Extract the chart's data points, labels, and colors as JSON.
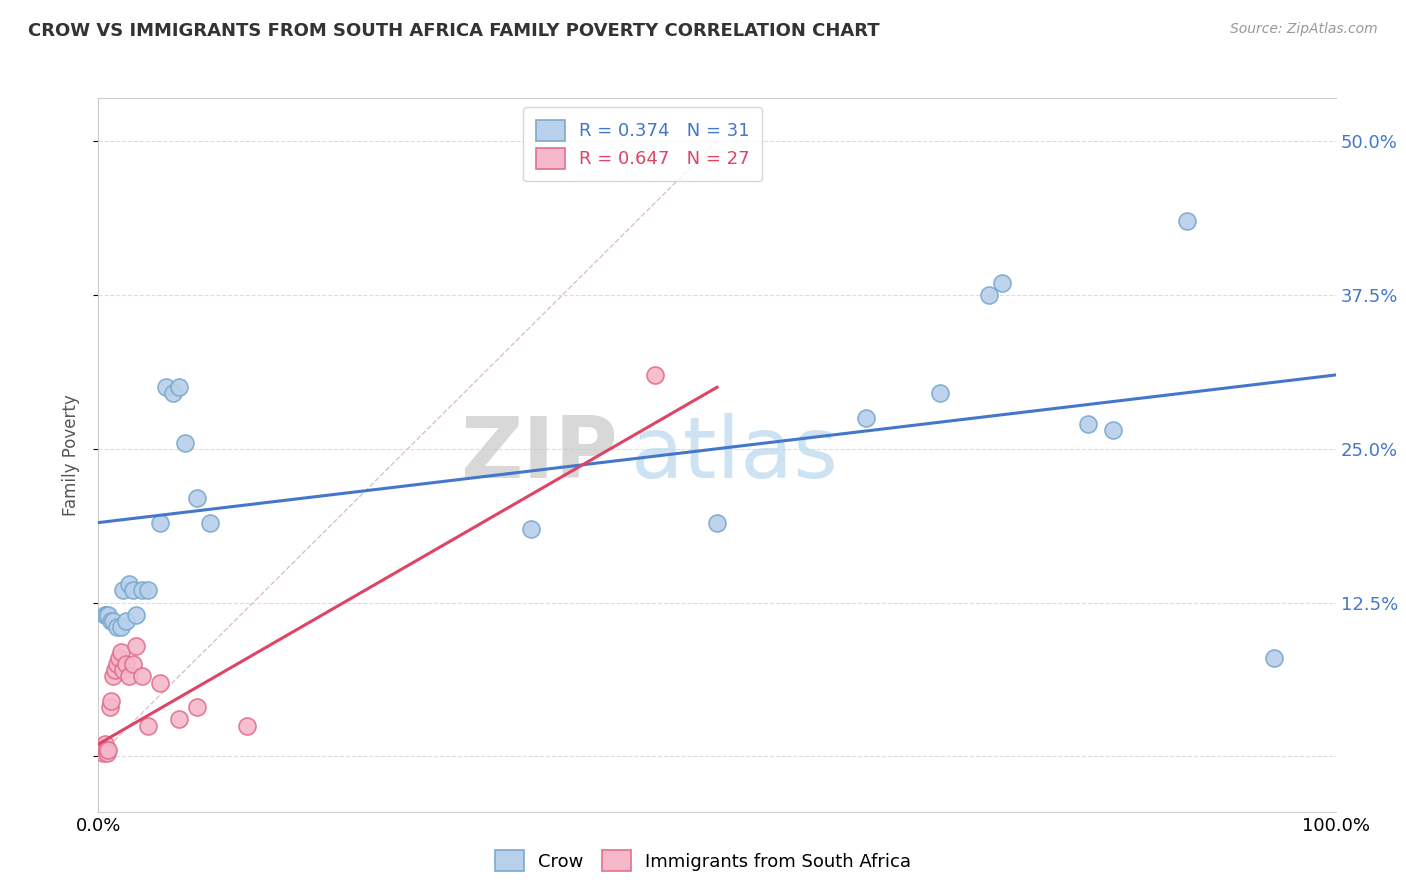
{
  "title": "CROW VS IMMIGRANTS FROM SOUTH AFRICA FAMILY POVERTY CORRELATION CHART",
  "source": "Source: ZipAtlas.com",
  "ylabel": "Family Poverty",
  "legend_r1": "R = 0.374   N = 31",
  "legend_r2": "R = 0.647   N = 27",
  "crow_color": "#b8d0ea",
  "crow_edge": "#7aaad0",
  "imm_color": "#f5b8c8",
  "imm_edge": "#e07090",
  "blue_line_color": "#4477cc",
  "pink_line_color": "#dd4466",
  "diag_line_color": "#e0c0c8",
  "watermark_zip": "ZIP",
  "watermark_atlas": "atlas",
  "background_color": "#ffffff",
  "grid_color": "#dddddd",
  "xlim": [
    0.0,
    1.0
  ],
  "ylim": [
    -0.045,
    0.535
  ],
  "ytick_values": [
    0.0,
    0.125,
    0.25,
    0.375,
    0.5
  ],
  "ytick_labels": [
    "",
    "12.5%",
    "25.0%",
    "37.5%",
    "50.0%"
  ],
  "crow_scatter_x": [
    0.005,
    0.006,
    0.008,
    0.01,
    0.012,
    0.015,
    0.018,
    0.02,
    0.022,
    0.025,
    0.028,
    0.03,
    0.035,
    0.04,
    0.05,
    0.055,
    0.06,
    0.065,
    0.07,
    0.08,
    0.09,
    0.35,
    0.5,
    0.62,
    0.68,
    0.72,
    0.73,
    0.8,
    0.82,
    0.88,
    0.95
  ],
  "crow_scatter_y": [
    0.115,
    0.115,
    0.115,
    0.11,
    0.11,
    0.105,
    0.105,
    0.135,
    0.11,
    0.14,
    0.135,
    0.115,
    0.135,
    0.135,
    0.19,
    0.3,
    0.295,
    0.3,
    0.255,
    0.21,
    0.19,
    0.185,
    0.19,
    0.275,
    0.295,
    0.375,
    0.385,
    0.27,
    0.265,
    0.435,
    0.08
  ],
  "imm_scatter_x": [
    0.002,
    0.003,
    0.004,
    0.005,
    0.005,
    0.006,
    0.007,
    0.008,
    0.009,
    0.01,
    0.012,
    0.013,
    0.015,
    0.017,
    0.018,
    0.02,
    0.022,
    0.025,
    0.028,
    0.03,
    0.035,
    0.04,
    0.05,
    0.065,
    0.08,
    0.12,
    0.45
  ],
  "imm_scatter_y": [
    0.005,
    0.005,
    0.003,
    0.005,
    0.01,
    0.005,
    0.003,
    0.005,
    0.04,
    0.045,
    0.065,
    0.07,
    0.075,
    0.08,
    0.085,
    0.07,
    0.075,
    0.065,
    0.075,
    0.09,
    0.065,
    0.025,
    0.06,
    0.03,
    0.04,
    0.025,
    0.31
  ],
  "crow_line_x": [
    0.0,
    1.0
  ],
  "crow_line_y": [
    0.19,
    0.31
  ],
  "imm_line_x": [
    0.0,
    0.5
  ],
  "imm_line_y": [
    0.01,
    0.3
  ]
}
